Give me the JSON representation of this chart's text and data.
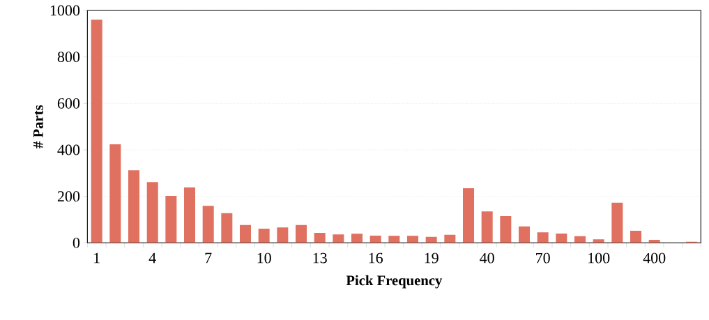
{
  "chart_data": {
    "type": "bar",
    "xlabel": "Pick Frequency",
    "ylabel": "# Parts",
    "categories": [
      "1",
      null,
      null,
      "4",
      null,
      null,
      "7",
      null,
      null,
      "10",
      null,
      null,
      "13",
      null,
      null,
      "16",
      null,
      null,
      "19",
      null,
      null,
      "40",
      null,
      null,
      "70",
      null,
      null,
      "100",
      null,
      null,
      "400",
      null,
      null
    ],
    "values": [
      960,
      424,
      312,
      261,
      202,
      239,
      159,
      128,
      77,
      61,
      66,
      77,
      43,
      36,
      39,
      31,
      30,
      30,
      26,
      35,
      235,
      135,
      115,
      71,
      45,
      40,
      29,
      15,
      173,
      52,
      13,
      0,
      5
    ],
    "color": "#e0705f",
    "ylim": [
      0,
      1000
    ],
    "yticks": [
      0,
      200,
      400,
      600,
      800,
      1000
    ],
    "grid": "y"
  }
}
